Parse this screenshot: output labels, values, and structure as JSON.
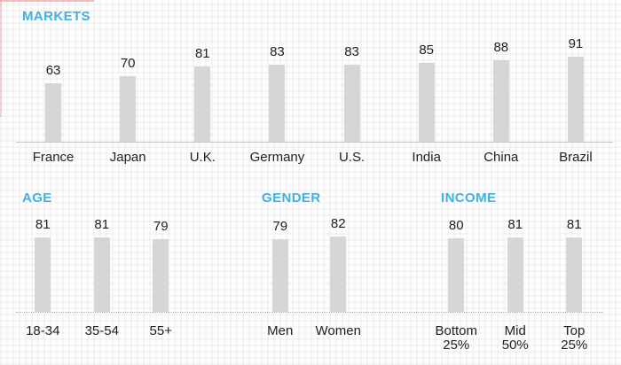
{
  "page": {
    "background_style": "graph-paper grid, white",
    "accent_color": "#41b1e1",
    "bar_color": "#d6d6d6",
    "text_color": "#222222"
  },
  "chart_data": [
    {
      "type": "bar",
      "section": "markets",
      "title": "MARKETS",
      "categories": [
        "France",
        "Japan",
        "U.K.",
        "Germany",
        "U.S.",
        "India",
        "China",
        "Brazil"
      ],
      "values": [
        63,
        70,
        81,
        83,
        83,
        85,
        88,
        91
      ],
      "xlabel": "",
      "ylabel": "",
      "ylim": [
        0,
        100
      ],
      "grid": false,
      "legend": "none",
      "value_labels_shown": true,
      "baseline_style": "solid"
    },
    {
      "type": "bar",
      "section": "age",
      "title": "AGE",
      "categories": [
        "18-34",
        "35-54",
        "55+"
      ],
      "values": [
        81,
        81,
        79
      ],
      "xlabel": "",
      "ylabel": "",
      "ylim": [
        0,
        100
      ],
      "grid": false,
      "legend": "none",
      "value_labels_shown": true,
      "baseline_style": "dotted"
    },
    {
      "type": "bar",
      "section": "gender",
      "title": "GENDER",
      "categories": [
        "Men",
        "Women"
      ],
      "values": [
        79,
        82
      ],
      "xlabel": "",
      "ylabel": "",
      "ylim": [
        0,
        100
      ],
      "grid": false,
      "legend": "none",
      "value_labels_shown": true,
      "baseline_style": "dotted"
    },
    {
      "type": "bar",
      "section": "income",
      "title": "INCOME",
      "categories": [
        "Bottom\n25%",
        "Mid\n50%",
        "Top\n25%"
      ],
      "values": [
        80,
        81,
        81
      ],
      "xlabel": "",
      "ylabel": "",
      "ylim": [
        0,
        100
      ],
      "grid": false,
      "legend": "none",
      "value_labels_shown": true,
      "baseline_style": "dotted"
    }
  ]
}
